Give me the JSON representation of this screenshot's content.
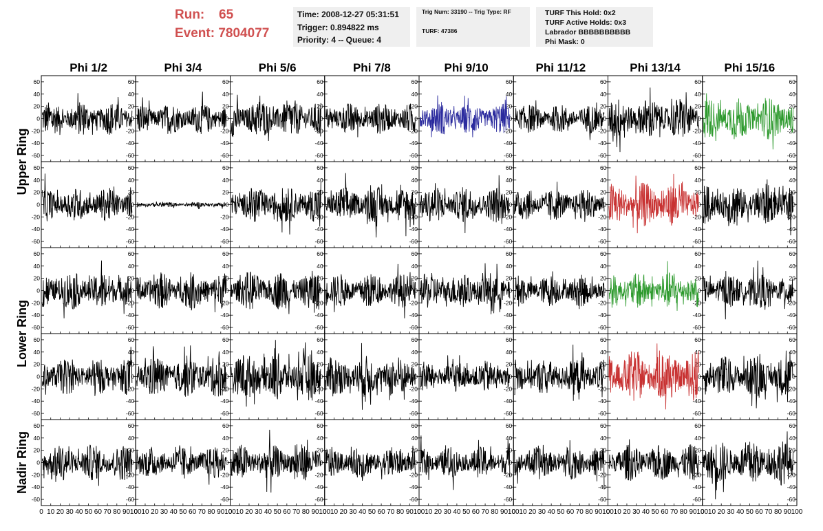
{
  "header": {
    "run_label": "Run:",
    "run_value": "65",
    "event_label": "Event:",
    "event_value": "7804077"
  },
  "info_box_1": {
    "time": "Time: 2008-12-27 05:31:51",
    "trigger": "Trigger: 0.894822 ms",
    "priority": "Priority: 4 -- Queue: 4"
  },
  "info_box_2": {
    "trig": "Trig Num: 33190 -- Trig Type: RF",
    "turf": "TURF: 47386"
  },
  "info_box_3": {
    "this_hold": "TURF This Hold: 0x2",
    "active_holds": "TURF Active Holds: 0x3",
    "labrador": "Labrador BBBBBBBBBB",
    "phi_mask": "Phi Mask: 0"
  },
  "chart_data": {
    "type": "line",
    "columns": [
      "Phi 1/2",
      "Phi 3/4",
      "Phi 5/6",
      "Phi 7/8",
      "Phi 9/10",
      "Phi 11/12",
      "Phi 13/14",
      "Phi 15/16"
    ],
    "row_groups": [
      "Upper Ring",
      "Lower Ring",
      "Nadir Ring"
    ],
    "rows": 5,
    "xlim": [
      0,
      100
    ],
    "ylim": [
      -70,
      70
    ],
    "y_ticks": [
      -60,
      -40,
      -20,
      0,
      20,
      40,
      60
    ],
    "x_tick_labels": [
      "0",
      "10",
      "20",
      "30",
      "40",
      "50",
      "60",
      "70",
      "80",
      "90",
      "100"
    ],
    "default_color": "#000000",
    "highlight_colors": {
      "blue": "#2b2b9e",
      "red": "#c83232",
      "green": "#2e9a2e"
    },
    "panels": [
      [
        {
          "amp": 13,
          "color": "#000000"
        },
        {
          "amp": 12,
          "color": "#000000"
        },
        {
          "amp": 15,
          "color": "#000000"
        },
        {
          "amp": 12,
          "color": "#000000"
        },
        {
          "amp": 12,
          "color": "#2b2b9e"
        },
        {
          "amp": 11,
          "color": "#000000"
        },
        {
          "amp": 16,
          "color": "#000000"
        },
        {
          "amp": 16,
          "color": "#2e9a2e"
        }
      ],
      [
        {
          "amp": 13,
          "color": "#000000"
        },
        {
          "amp": 2,
          "color": "#000000"
        },
        {
          "amp": 14,
          "color": "#000000"
        },
        {
          "amp": 14,
          "color": "#000000"
        },
        {
          "amp": 14,
          "color": "#000000"
        },
        {
          "amp": 12,
          "color": "#000000"
        },
        {
          "amp": 17,
          "color": "#c83232"
        },
        {
          "amp": 16,
          "color": "#000000"
        }
      ],
      [
        {
          "amp": 15,
          "color": "#000000"
        },
        {
          "amp": 14,
          "color": "#000000"
        },
        {
          "amp": 15,
          "color": "#000000"
        },
        {
          "amp": 13,
          "color": "#000000"
        },
        {
          "amp": 14,
          "color": "#000000"
        },
        {
          "amp": 12,
          "color": "#000000"
        },
        {
          "amp": 14,
          "color": "#2e9a2e"
        },
        {
          "amp": 13,
          "color": "#000000"
        }
      ],
      [
        {
          "amp": 14,
          "color": "#000000"
        },
        {
          "amp": 16,
          "color": "#000000"
        },
        {
          "amp": 18,
          "color": "#000000"
        },
        {
          "amp": 16,
          "color": "#000000"
        },
        {
          "amp": 12,
          "color": "#000000"
        },
        {
          "amp": 14,
          "color": "#000000"
        },
        {
          "amp": 20,
          "color": "#c83232"
        },
        {
          "amp": 16,
          "color": "#000000"
        }
      ],
      [
        {
          "amp": 14,
          "color": "#000000"
        },
        {
          "amp": 12,
          "color": "#000000"
        },
        {
          "amp": 14,
          "color": "#000000"
        },
        {
          "amp": 12,
          "color": "#000000"
        },
        {
          "amp": 12,
          "color": "#000000"
        },
        {
          "amp": 13,
          "color": "#000000"
        },
        {
          "amp": 14,
          "color": "#000000"
        },
        {
          "amp": 17,
          "color": "#000000"
        }
      ]
    ]
  }
}
